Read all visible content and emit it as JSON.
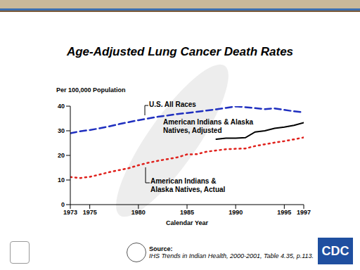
{
  "chart_data": {
    "type": "line",
    "title": "Age-Adjusted Lung Cancer Death Rates",
    "y_label": "Per 100,000 Population",
    "x_label": "Calendar Year",
    "source_label": "Source:",
    "source": "IHS Trends in Indian Health, 2000-2001, Table 4.35, p.113.",
    "logo_text": "CDC",
    "x": [
      1973,
      1974,
      1975,
      1976,
      1977,
      1978,
      1979,
      1980,
      1981,
      1982,
      1983,
      1984,
      1985,
      1986,
      1987,
      1988,
      1989,
      1990,
      1991,
      1992,
      1993,
      1994,
      1995,
      1996,
      1997
    ],
    "series": [
      {
        "name": "U.S. All Races",
        "color": "#1f2fbf",
        "line_style": "dashed",
        "values": [
          29,
          29.8,
          30.3,
          31,
          31.8,
          32.7,
          33.5,
          34.3,
          35,
          35.7,
          36.2,
          36.8,
          37.2,
          37.7,
          38.2,
          38.7,
          39.3,
          39.9,
          39.6,
          39.2,
          38.8,
          39.1,
          38.5,
          37.9,
          37.5
        ]
      },
      {
        "name": "American Indians & Alaska Natives, Adjusted",
        "color": "#000000",
        "line_style": "solid",
        "values": [
          null,
          null,
          null,
          null,
          null,
          null,
          null,
          null,
          null,
          null,
          null,
          null,
          null,
          null,
          null,
          26.6,
          27,
          27,
          27.2,
          29.5,
          30,
          31,
          31.5,
          32.2,
          33.3
        ]
      },
      {
        "name": "American Indians & Alaska Natives, Actual",
        "color": "#e0201b",
        "line_style": "dotted",
        "values": [
          11.2,
          10.8,
          11.3,
          12.2,
          13.2,
          14,
          14.8,
          16,
          17,
          17.8,
          18.5,
          19.2,
          20.4,
          20.5,
          21.5,
          22,
          22.5,
          22.7,
          22.8,
          23.8,
          24.5,
          25.2,
          25.8,
          26.5,
          27.3
        ]
      }
    ],
    "xlim": [
      1973,
      1997
    ],
    "xticks": [
      1973,
      1975,
      1980,
      1985,
      1990,
      1995,
      1997
    ],
    "ylim": [
      0,
      40
    ],
    "yticks": [
      0,
      10,
      20,
      30,
      40
    ],
    "grid": false
  }
}
